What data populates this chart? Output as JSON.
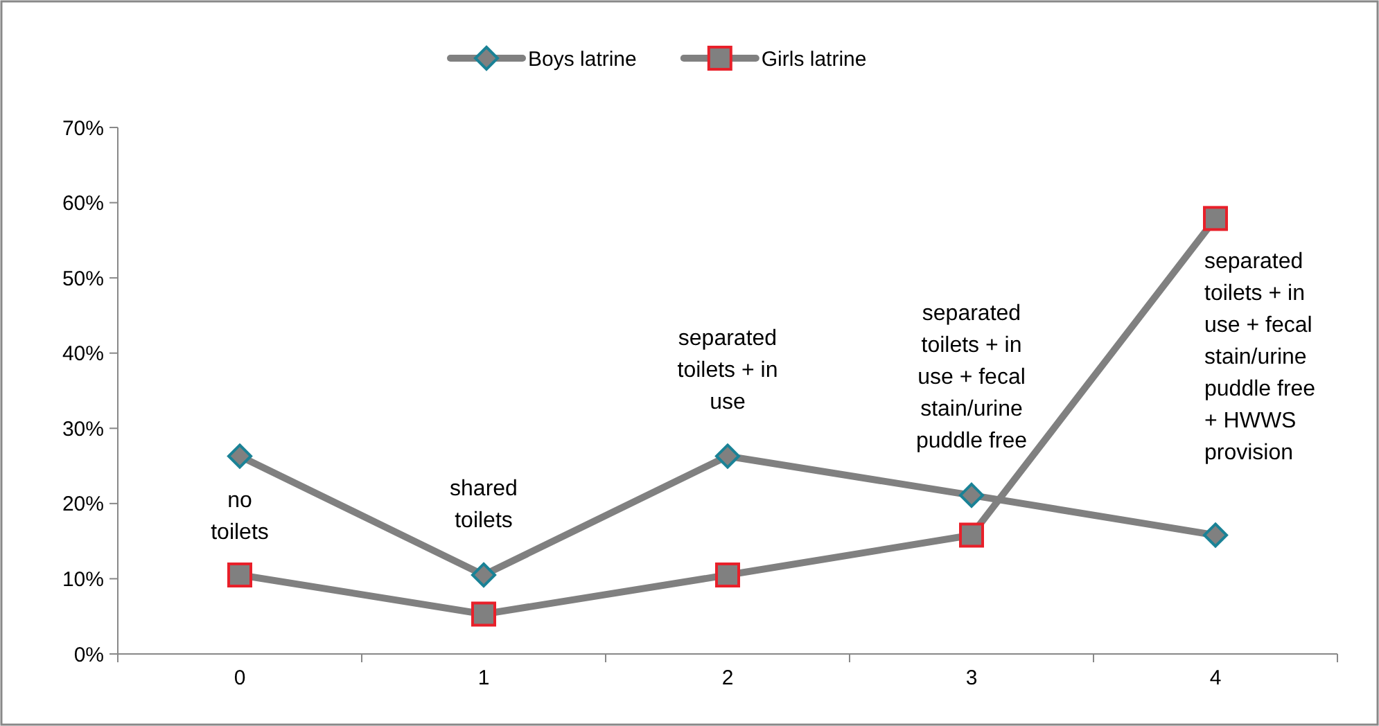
{
  "chart_data": {
    "type": "line",
    "categories": [
      "0",
      "1",
      "2",
      "3",
      "4"
    ],
    "series": [
      {
        "name": "Boys latrine",
        "color": "#808080",
        "marker": "diamond",
        "values": [
          26.3,
          10.5,
          26.3,
          21.1,
          15.8
        ]
      },
      {
        "name": "Girls latrine",
        "color": "#808080",
        "marker": "square",
        "values": [
          10.5,
          5.3,
          10.5,
          15.8,
          57.9
        ]
      }
    ],
    "ylim": [
      0,
      70
    ],
    "yticks": [
      {
        "value": 0,
        "label": "0%"
      },
      {
        "value": 10,
        "label": "10%"
      },
      {
        "value": 20,
        "label": "20%"
      },
      {
        "value": 30,
        "label": "30%"
      },
      {
        "value": 40,
        "label": "40%"
      },
      {
        "value": 50,
        "label": "50%"
      },
      {
        "value": 60,
        "label": "60%"
      },
      {
        "value": 70,
        "label": "70%"
      }
    ],
    "grid": false,
    "legend": "top",
    "line_style": "solid",
    "annotations": [
      "no toilets",
      "shared toilets",
      "separated toilets + in use",
      "separated toilets + in use + fecal stain/urine puddle free",
      "separated toilets + in use + fecal stain/urine puddle free + HWWS provision"
    ]
  }
}
